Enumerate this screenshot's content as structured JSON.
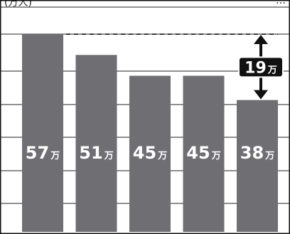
{
  "header": {
    "top_left_label": "(万人)",
    "top_right_label": "…"
  },
  "chart_data": {
    "type": "bar",
    "title": "",
    "xlabel": "",
    "ylabel": "(万人)",
    "categories": [
      "",
      "",
      "",
      "",
      ""
    ],
    "values": [
      57,
      51,
      45,
      45,
      38
    ],
    "data_labels": [
      "57万",
      "51万",
      "45万",
      "45万",
      "38万"
    ],
    "ylim": [
      0,
      65
    ],
    "grid": true,
    "colors": {
      "bar": "#6e6e73",
      "grid": "#222222",
      "frame": "#111111",
      "label_text": "#ffffff",
      "callout_bg": "#111111",
      "callout_text": "#ffffff"
    },
    "annotation": {
      "label": "19万",
      "from_value": 57,
      "to_value": 38
    }
  }
}
